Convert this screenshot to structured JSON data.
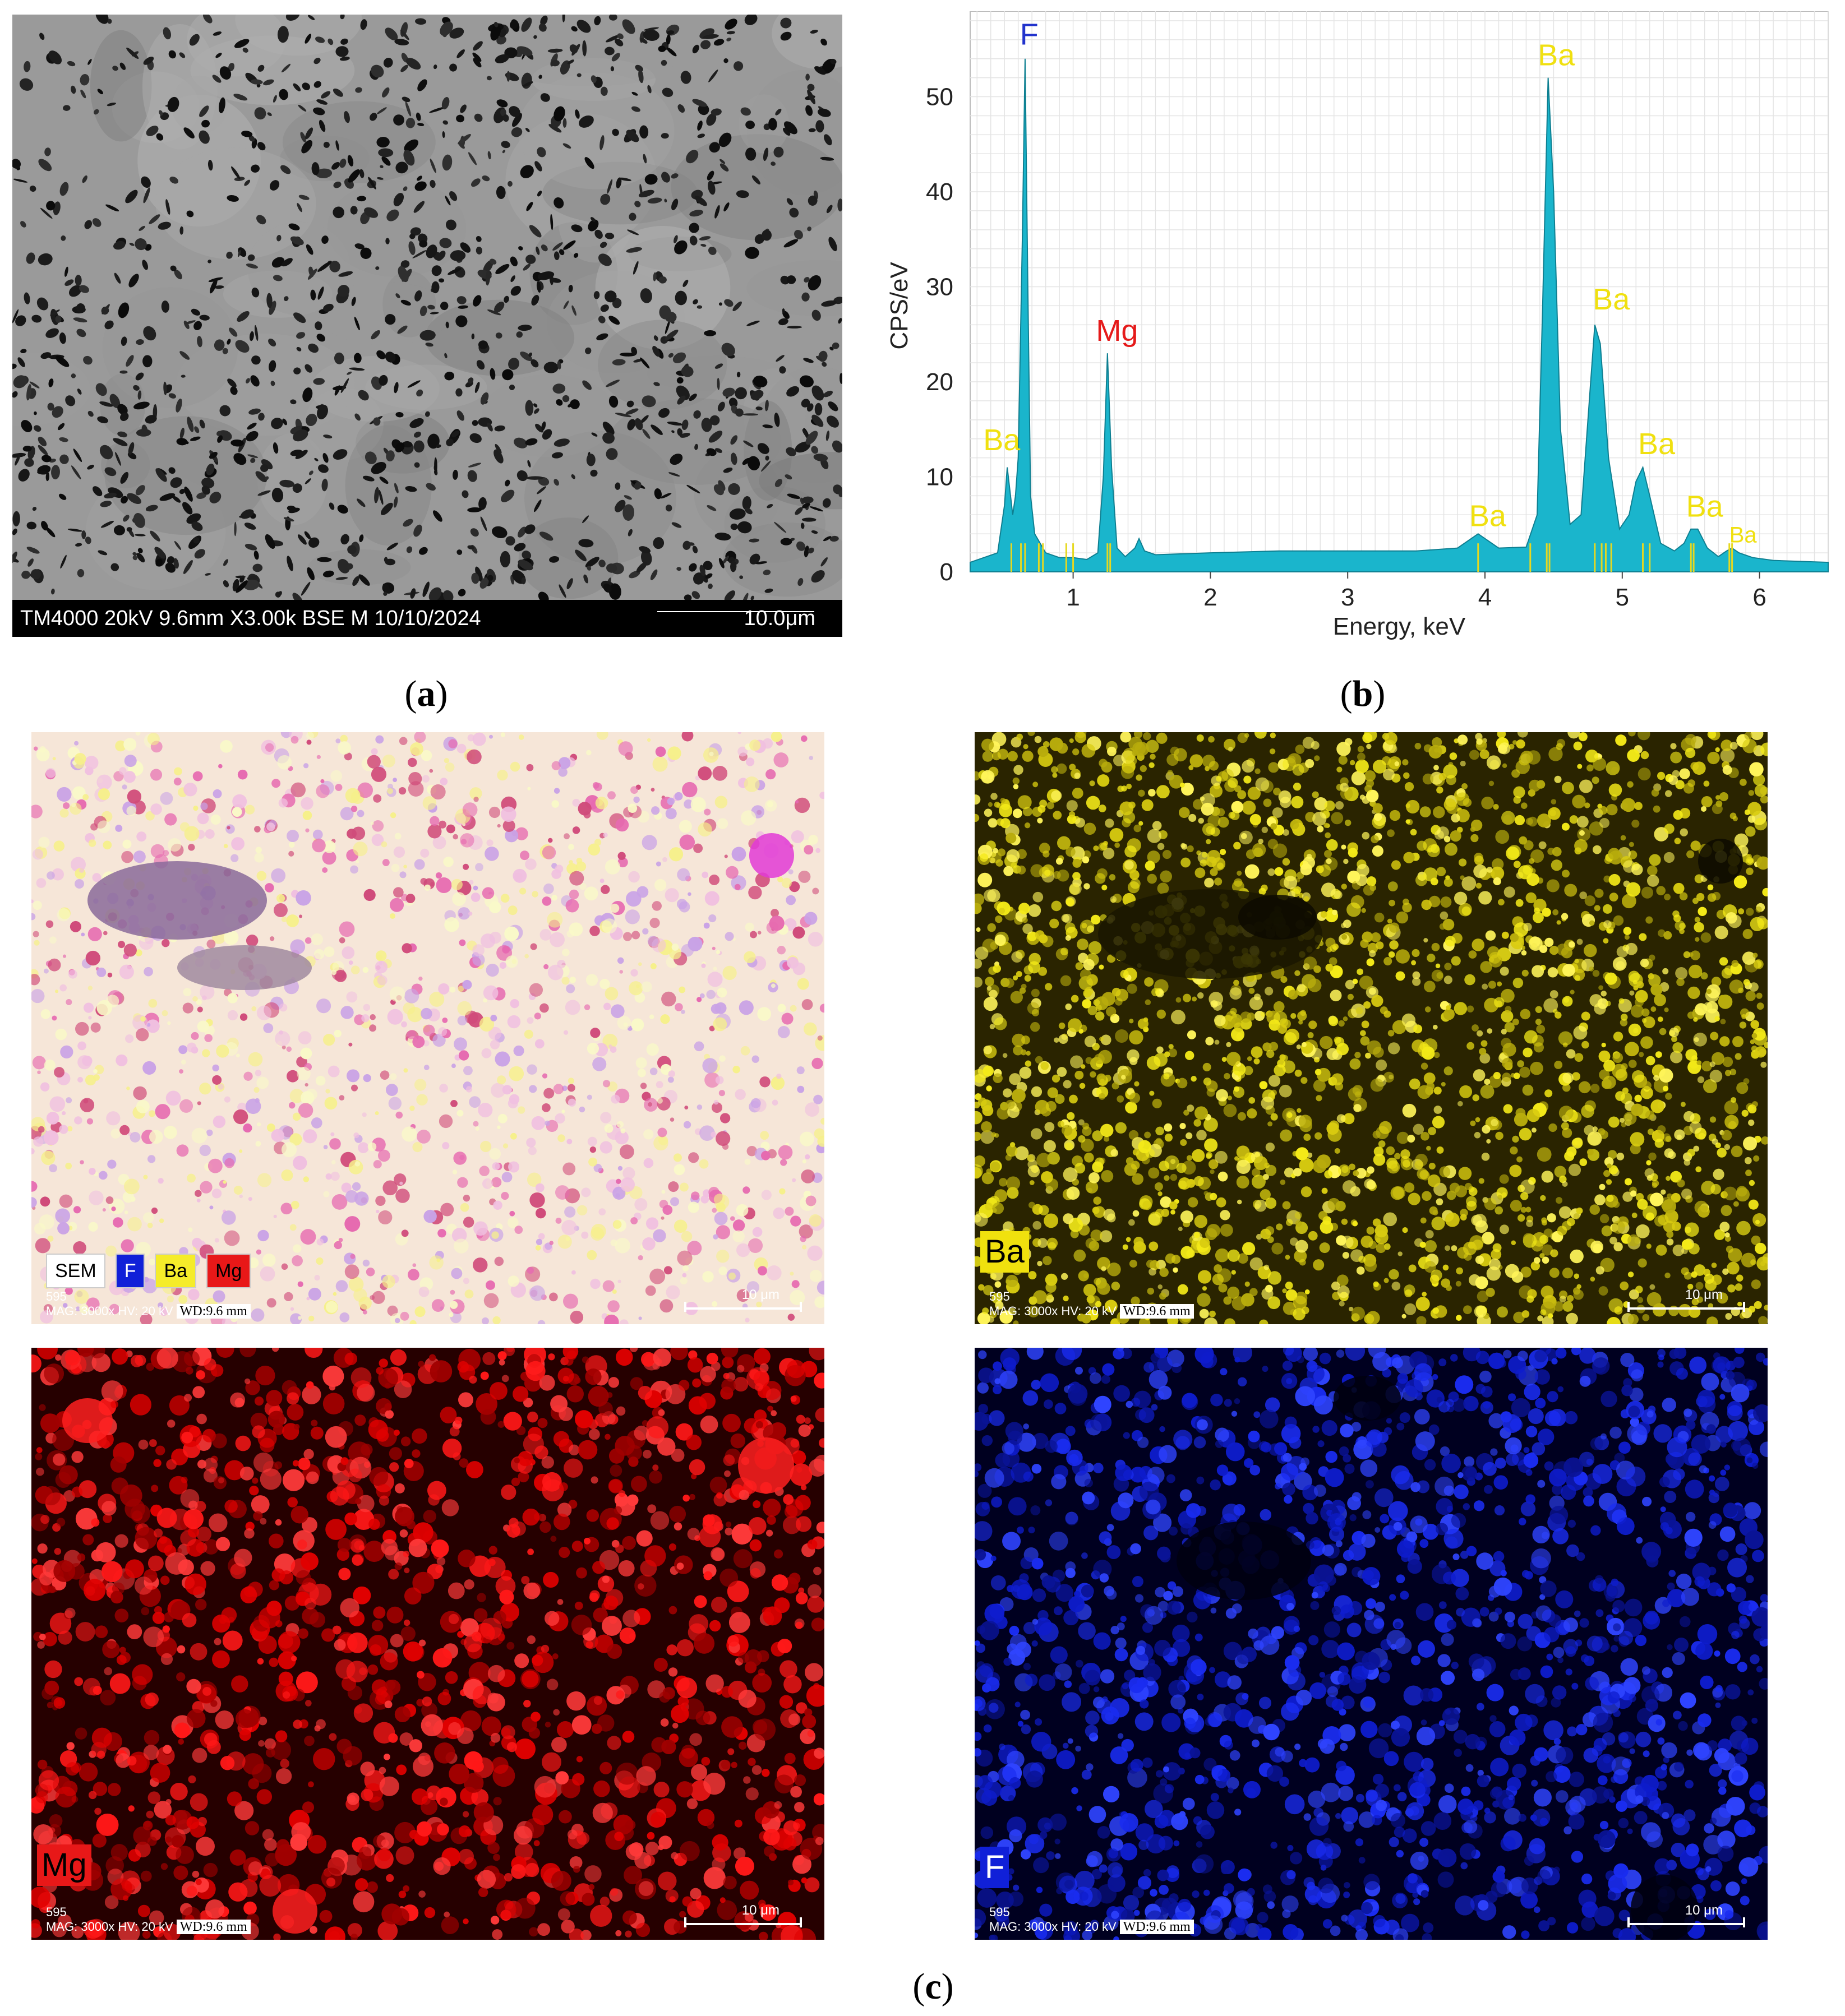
{
  "captions": {
    "a": "a",
    "b": "b",
    "c": "c"
  },
  "sem": {
    "footer_text": "TM4000 20kV 9.6mm X3.00k BSE M 10/10/2024",
    "scale_label": "10.0μm"
  },
  "chart_data": {
    "type": "line",
    "title": "",
    "xlabel": "Energy, keV",
    "ylabel": "CPS/eV",
    "xlim": [
      0.25,
      6.5
    ],
    "ylim": [
      0,
      59
    ],
    "x_ticks": [
      1,
      2,
      3,
      4,
      5,
      6
    ],
    "y_ticks": [
      0,
      10,
      20,
      30,
      40,
      50
    ],
    "grid": true,
    "series": [
      {
        "fill_color": "#1ab5cc",
        "x": [
          0.25,
          0.45,
          0.5,
          0.52,
          0.56,
          0.58,
          0.6,
          0.63,
          0.65,
          0.67,
          0.69,
          0.72,
          0.76,
          0.8,
          0.9,
          1.0,
          1.1,
          1.18,
          1.22,
          1.25,
          1.28,
          1.32,
          1.38,
          1.45,
          1.48,
          1.52,
          1.6,
          2.0,
          2.5,
          3.0,
          3.5,
          3.8,
          3.9,
          3.95,
          4.0,
          4.1,
          4.3,
          4.38,
          4.42,
          4.46,
          4.5,
          4.55,
          4.62,
          4.7,
          4.76,
          4.8,
          4.84,
          4.9,
          4.98,
          5.05,
          5.1,
          5.15,
          5.2,
          5.28,
          5.38,
          5.45,
          5.5,
          5.55,
          5.62,
          5.7,
          5.76,
          5.8,
          5.85,
          5.95,
          6.1,
          6.5
        ],
        "y": [
          1.0,
          2.0,
          7.0,
          11.0,
          6.0,
          8.0,
          12.0,
          35.0,
          54.0,
          30.0,
          8.0,
          4.0,
          3.0,
          2.0,
          1.5,
          1.5,
          1.3,
          2.0,
          10.0,
          23.0,
          11.0,
          2.5,
          1.6,
          2.5,
          3.5,
          2.2,
          1.8,
          2.0,
          2.2,
          2.2,
          2.2,
          2.5,
          3.5,
          4.0,
          3.5,
          2.5,
          2.6,
          6.0,
          28.0,
          52.0,
          40.0,
          15.0,
          5.0,
          6.0,
          18.0,
          26.0,
          24.0,
          12.0,
          4.5,
          6.0,
          9.5,
          11.0,
          8.0,
          3.0,
          2.2,
          3.0,
          4.5,
          4.5,
          2.5,
          1.6,
          2.2,
          2.5,
          2.0,
          1.5,
          1.2,
          1.0
        ]
      }
    ],
    "annotations": [
      {
        "text": "F",
        "x": 0.68,
        "y": 55.5,
        "color": "#2233cc"
      },
      {
        "text": "Mg",
        "x": 1.32,
        "y": 24.3,
        "color": "#e51a1a"
      },
      {
        "text": "Ba",
        "x": 0.48,
        "y": 12.8,
        "color": "#f0e010"
      },
      {
        "text": "Ba",
        "x": 4.02,
        "y": 4.8,
        "color": "#f0e010"
      },
      {
        "text": "Ba",
        "x": 4.52,
        "y": 53.3,
        "color": "#f0e010"
      },
      {
        "text": "Ba",
        "x": 4.92,
        "y": 27.6,
        "color": "#f0e010"
      },
      {
        "text": "Ba",
        "x": 5.25,
        "y": 12.4,
        "color": "#f0e010"
      },
      {
        "text": "Ba",
        "x": 5.6,
        "y": 5.8,
        "color": "#f0e010"
      },
      {
        "text": "Ba",
        "x": 5.88,
        "y": 3.1,
        "color": "#f0e010",
        "small": true
      }
    ],
    "line_markers": [
      0.55,
      0.62,
      0.65,
      0.75,
      0.78,
      0.95,
      1.0,
      1.25,
      1.27,
      3.95,
      4.33,
      4.45,
      4.47,
      4.8,
      4.85,
      4.88,
      4.92,
      5.15,
      5.2,
      5.5,
      5.52,
      5.78,
      5.8
    ]
  },
  "maps": {
    "footer_id": "595",
    "footer_line": "MAG: 3000x   HV: 20 kV",
    "wd": "WD:9.6 mm",
    "scale_label": "10 μm",
    "legend": [
      {
        "label": "SEM",
        "bg": "#ffffff",
        "fg": "#000000"
      },
      {
        "label": "F",
        "bg": "#1020d8",
        "fg": "#ffffff"
      },
      {
        "label": "Ba",
        "bg": "#f5ec2a",
        "fg": "#000000"
      },
      {
        "label": "Mg",
        "bg": "#e81818",
        "fg": "#000000"
      }
    ],
    "ba_tag": "Ba",
    "mg_tag": "Mg",
    "f_tag": "F"
  }
}
